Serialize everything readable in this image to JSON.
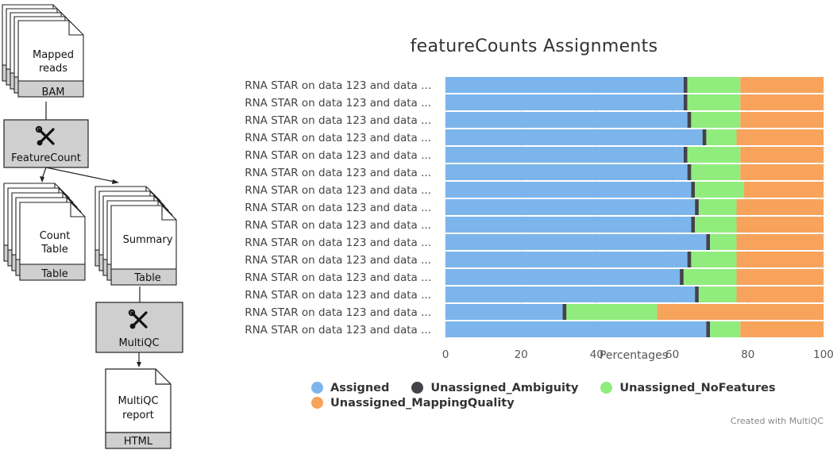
{
  "workflow": {
    "bam_doc": {
      "line1": "Mapped",
      "line2": "reads",
      "type": "BAM"
    },
    "featurecount_tool": {
      "label": "FeatureCount"
    },
    "count_doc": {
      "line1": "Count",
      "line2": "Table",
      "type": "Table"
    },
    "summary_doc": {
      "line1": "Summary",
      "type": "Table"
    },
    "multiqc_tool": {
      "label": "MultiQC"
    },
    "report_doc": {
      "line1": "MultiQC",
      "line2": "report",
      "type": "HTML"
    }
  },
  "chart_data": {
    "type": "bar",
    "orientation": "horizontal",
    "stacked": true,
    "title": "featureCounts Assignments",
    "xlabel": "Percentages",
    "xlim": [
      0,
      100
    ],
    "xticks": [
      0,
      20,
      40,
      60,
      80,
      100
    ],
    "categories": [
      "RNA STAR on data 123 and data ...",
      "RNA STAR on data 123 and data ...",
      "RNA STAR on data 123 and data ...",
      "RNA STAR on data 123 and data ...",
      "RNA STAR on data 123 and data ...",
      "RNA STAR on data 123 and data ...",
      "RNA STAR on data 123 and data ...",
      "RNA STAR on data 123 and data ...",
      "RNA STAR on data 123 and data ...",
      "RNA STAR on data 123 and data ...",
      "RNA STAR on data 123 and data ...",
      "RNA STAR on data 123 and data ...",
      "RNA STAR on data 123 and data ...",
      "RNA STAR on data 123 and data ...",
      "RNA STAR on data 123 and data ..."
    ],
    "series": [
      {
        "name": "Assigned",
        "color": "#7cb5ec",
        "values": [
          63,
          63,
          64,
          68,
          63,
          64,
          65,
          66,
          65,
          69,
          64,
          62,
          66,
          31,
          69
        ]
      },
      {
        "name": "Unassigned_Ambiguity",
        "color": "#434348",
        "values": [
          1,
          1,
          1,
          1,
          1,
          1,
          1,
          1,
          1,
          1,
          1,
          1,
          1,
          1,
          1
        ]
      },
      {
        "name": "Unassigned_NoFeatures",
        "color": "#90ed7d",
        "values": [
          14,
          14,
          13,
          8,
          14,
          13,
          13,
          10,
          11,
          7,
          12,
          14,
          10,
          24,
          8
        ]
      },
      {
        "name": "Unassigned_MappingQuality",
        "color": "#f7a35c",
        "values": [
          22,
          22,
          22,
          23,
          22,
          22,
          21,
          23,
          23,
          23,
          23,
          23,
          23,
          44,
          22
        ]
      }
    ],
    "credit": "Created with MultiQC"
  }
}
